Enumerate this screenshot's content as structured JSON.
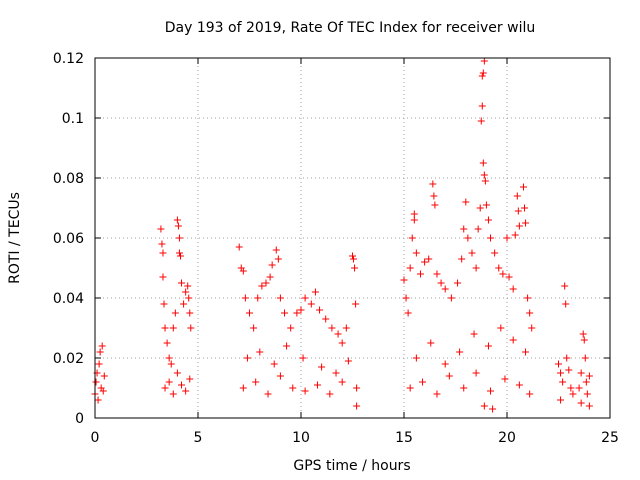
{
  "chart_data": {
    "type": "scatter",
    "title": "Day 193 of 2019, Rate Of TEC Index for receiver wilu",
    "xlabel": "GPS time / hours",
    "ylabel": "ROTI / TECUs",
    "xlim": [
      0,
      25
    ],
    "ylim": [
      0,
      0.12
    ],
    "xticks": [
      0,
      5,
      10,
      15,
      20,
      25
    ],
    "xtick_labels": [
      "0",
      "5",
      "10",
      "15",
      "20",
      "25"
    ],
    "yticks": [
      0,
      0.02,
      0.04,
      0.06,
      0.08,
      0.1,
      0.12
    ],
    "ytick_labels": [
      "0",
      "0.02",
      "0.04",
      "0.06",
      "0.08",
      "0.1",
      "0.12"
    ],
    "grid": true,
    "marker": "+",
    "color": "#ff0000",
    "series": [
      {
        "name": "ROTI",
        "points": [
          [
            0.0,
            0.008
          ],
          [
            0.05,
            0.012
          ],
          [
            0.1,
            0.015
          ],
          [
            0.15,
            0.006
          ],
          [
            0.2,
            0.018
          ],
          [
            0.25,
            0.022
          ],
          [
            0.3,
            0.01
          ],
          [
            0.35,
            0.024
          ],
          [
            0.4,
            0.009
          ],
          [
            0.45,
            0.014
          ],
          [
            3.2,
            0.063
          ],
          [
            3.25,
            0.058
          ],
          [
            3.3,
            0.055
          ],
          [
            3.3,
            0.047
          ],
          [
            3.35,
            0.038
          ],
          [
            3.4,
            0.03
          ],
          [
            3.5,
            0.025
          ],
          [
            3.6,
            0.02
          ],
          [
            3.7,
            0.018
          ],
          [
            3.8,
            0.03
          ],
          [
            3.9,
            0.035
          ],
          [
            4.0,
            0.066
          ],
          [
            4.05,
            0.064
          ],
          [
            4.1,
            0.06
          ],
          [
            4.1,
            0.055
          ],
          [
            4.15,
            0.054
          ],
          [
            4.2,
            0.045
          ],
          [
            4.3,
            0.038
          ],
          [
            4.4,
            0.042
          ],
          [
            4.5,
            0.044
          ],
          [
            4.55,
            0.04
          ],
          [
            4.6,
            0.035
          ],
          [
            4.65,
            0.03
          ],
          [
            3.4,
            0.01
          ],
          [
            3.6,
            0.012
          ],
          [
            3.8,
            0.008
          ],
          [
            4.0,
            0.015
          ],
          [
            4.2,
            0.011
          ],
          [
            4.4,
            0.009
          ],
          [
            4.6,
            0.013
          ],
          [
            7.0,
            0.057
          ],
          [
            7.1,
            0.05
          ],
          [
            7.2,
            0.049
          ],
          [
            7.3,
            0.04
          ],
          [
            7.5,
            0.035
          ],
          [
            7.7,
            0.03
          ],
          [
            7.9,
            0.04
          ],
          [
            8.1,
            0.044
          ],
          [
            8.3,
            0.045
          ],
          [
            8.5,
            0.047
          ],
          [
            8.6,
            0.051
          ],
          [
            8.8,
            0.056
          ],
          [
            8.9,
            0.053
          ],
          [
            9.0,
            0.04
          ],
          [
            9.2,
            0.035
          ],
          [
            9.5,
            0.03
          ],
          [
            9.8,
            0.035
          ],
          [
            10.0,
            0.036
          ],
          [
            10.2,
            0.04
          ],
          [
            10.5,
            0.038
          ],
          [
            10.7,
            0.042
          ],
          [
            10.9,
            0.036
          ],
          [
            11.2,
            0.033
          ],
          [
            11.5,
            0.03
          ],
          [
            11.8,
            0.028
          ],
          [
            12.0,
            0.025
          ],
          [
            12.2,
            0.03
          ],
          [
            12.5,
            0.054
          ],
          [
            12.55,
            0.053
          ],
          [
            12.6,
            0.05
          ],
          [
            12.65,
            0.038
          ],
          [
            7.2,
            0.01
          ],
          [
            7.8,
            0.012
          ],
          [
            8.4,
            0.008
          ],
          [
            9.0,
            0.014
          ],
          [
            9.6,
            0.01
          ],
          [
            10.2,
            0.009
          ],
          [
            10.8,
            0.011
          ],
          [
            11.4,
            0.008
          ],
          [
            12.0,
            0.012
          ],
          [
            7.4,
            0.02
          ],
          [
            8.0,
            0.022
          ],
          [
            8.7,
            0.018
          ],
          [
            9.3,
            0.024
          ],
          [
            10.1,
            0.02
          ],
          [
            11.0,
            0.017
          ],
          [
            11.7,
            0.015
          ],
          [
            12.3,
            0.019
          ],
          [
            12.7,
            0.01
          ],
          [
            12.7,
            0.004
          ],
          [
            15.0,
            0.046
          ],
          [
            15.1,
            0.04
          ],
          [
            15.2,
            0.035
          ],
          [
            15.3,
            0.05
          ],
          [
            15.4,
            0.06
          ],
          [
            15.5,
            0.066
          ],
          [
            15.5,
            0.068
          ],
          [
            15.6,
            0.055
          ],
          [
            15.8,
            0.048
          ],
          [
            16.0,
            0.052
          ],
          [
            16.2,
            0.053
          ],
          [
            16.4,
            0.078
          ],
          [
            16.45,
            0.074
          ],
          [
            16.5,
            0.071
          ],
          [
            16.6,
            0.048
          ],
          [
            16.8,
            0.045
          ],
          [
            17.0,
            0.043
          ],
          [
            17.3,
            0.04
          ],
          [
            17.6,
            0.045
          ],
          [
            17.8,
            0.053
          ],
          [
            17.9,
            0.063
          ],
          [
            18.0,
            0.072
          ],
          [
            18.1,
            0.06
          ],
          [
            18.3,
            0.055
          ],
          [
            18.5,
            0.05
          ],
          [
            18.6,
            0.063
          ],
          [
            18.7,
            0.07
          ],
          [
            18.75,
            0.099
          ],
          [
            18.8,
            0.104
          ],
          [
            18.8,
            0.114
          ],
          [
            18.85,
            0.115
          ],
          [
            18.9,
            0.119
          ],
          [
            18.85,
            0.085
          ],
          [
            18.9,
            0.081
          ],
          [
            18.95,
            0.079
          ],
          [
            19.0,
            0.071
          ],
          [
            19.1,
            0.066
          ],
          [
            19.2,
            0.06
          ],
          [
            19.4,
            0.055
          ],
          [
            19.6,
            0.05
          ],
          [
            19.8,
            0.048
          ],
          [
            20.0,
            0.06
          ],
          [
            20.1,
            0.047
          ],
          [
            20.3,
            0.043
          ],
          [
            20.4,
            0.061
          ],
          [
            20.5,
            0.074
          ],
          [
            20.55,
            0.069
          ],
          [
            20.6,
            0.064
          ],
          [
            20.8,
            0.077
          ],
          [
            20.85,
            0.07
          ],
          [
            20.9,
            0.065
          ],
          [
            21.0,
            0.04
          ],
          [
            21.1,
            0.035
          ],
          [
            21.2,
            0.03
          ],
          [
            15.3,
            0.01
          ],
          [
            15.9,
            0.012
          ],
          [
            16.6,
            0.008
          ],
          [
            17.2,
            0.014
          ],
          [
            17.9,
            0.01
          ],
          [
            18.5,
            0.015
          ],
          [
            19.2,
            0.009
          ],
          [
            19.9,
            0.013
          ],
          [
            20.6,
            0.011
          ],
          [
            21.1,
            0.008
          ],
          [
            15.6,
            0.02
          ],
          [
            16.3,
            0.025
          ],
          [
            17.0,
            0.018
          ],
          [
            17.7,
            0.022
          ],
          [
            18.4,
            0.028
          ],
          [
            19.1,
            0.024
          ],
          [
            19.7,
            0.03
          ],
          [
            20.3,
            0.026
          ],
          [
            20.9,
            0.022
          ],
          [
            18.9,
            0.004
          ],
          [
            19.3,
            0.003
          ],
          [
            22.5,
            0.018
          ],
          [
            22.6,
            0.015
          ],
          [
            22.7,
            0.012
          ],
          [
            22.8,
            0.044
          ],
          [
            22.85,
            0.038
          ],
          [
            22.9,
            0.02
          ],
          [
            23.0,
            0.016
          ],
          [
            23.1,
            0.01
          ],
          [
            23.2,
            0.008
          ],
          [
            22.6,
            0.006
          ],
          [
            23.5,
            0.01
          ],
          [
            23.6,
            0.015
          ],
          [
            23.7,
            0.028
          ],
          [
            23.75,
            0.026
          ],
          [
            23.8,
            0.02
          ],
          [
            23.85,
            0.012
          ],
          [
            23.9,
            0.008
          ],
          [
            24.0,
            0.014
          ],
          [
            23.6,
            0.005
          ],
          [
            24.0,
            0.004
          ]
        ]
      }
    ]
  }
}
